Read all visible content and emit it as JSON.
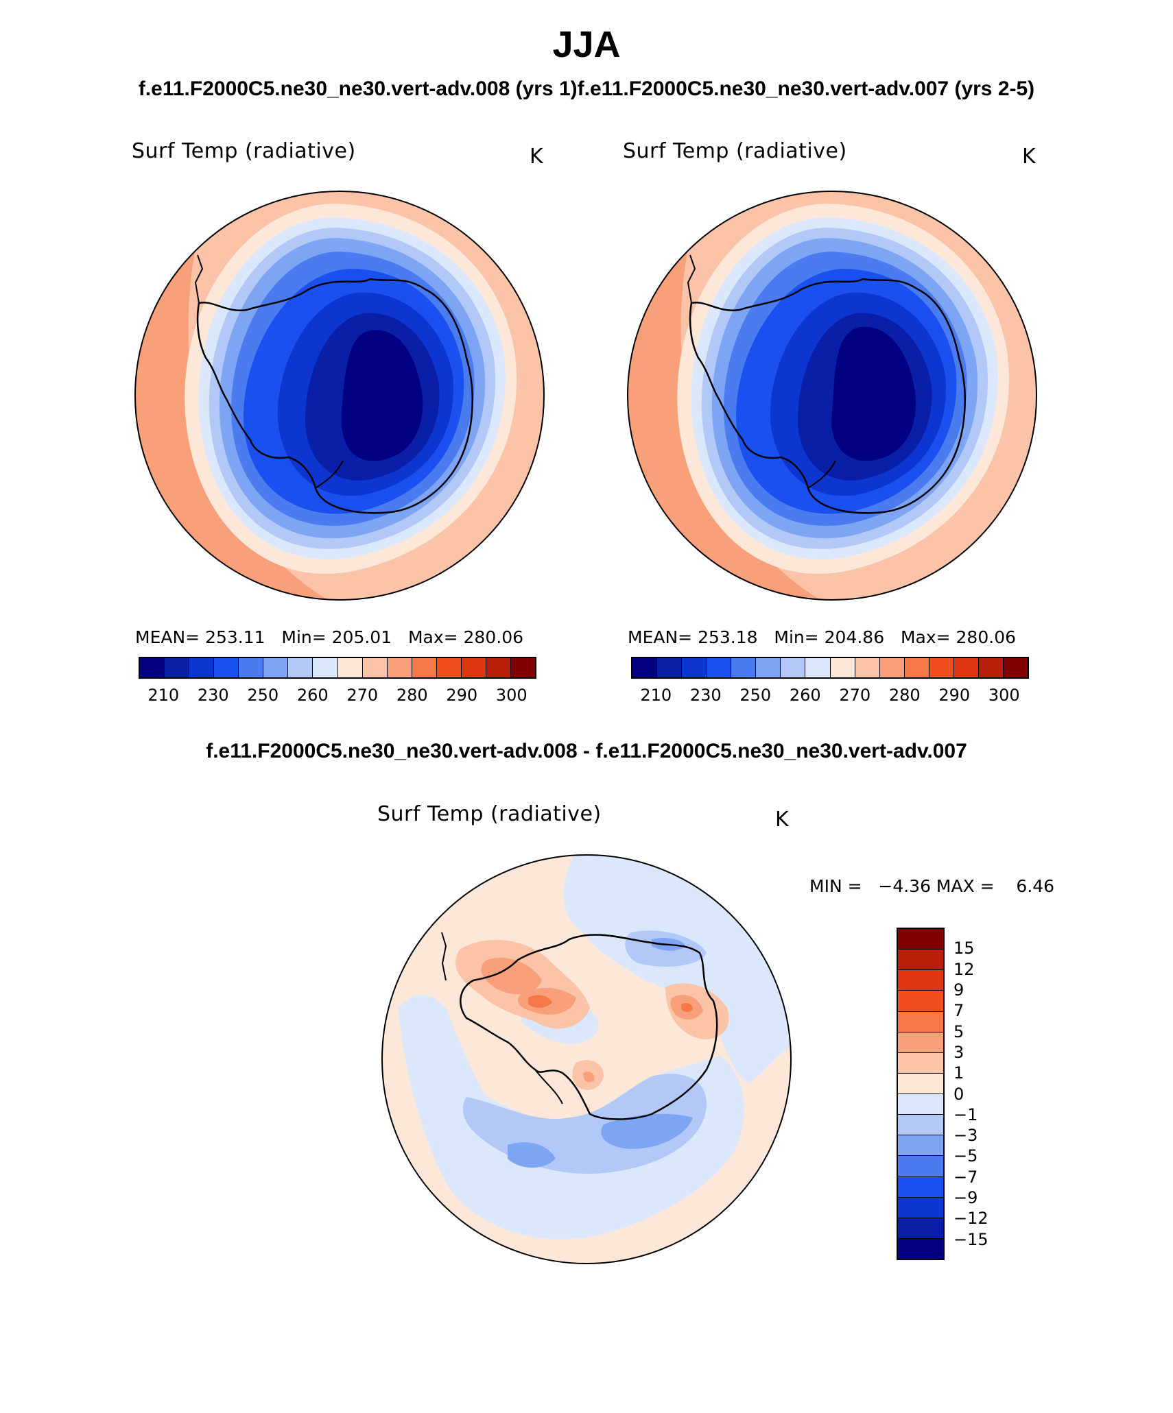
{
  "header": {
    "season": "JJA",
    "runs_line": "f.e11.F2000C5.ne30_ne30.vert-adv.008 (yrs 1)f.e11.F2000C5.ne30_ne30.vert-adv.007 (yrs 2-5)"
  },
  "panels": [
    {
      "variable": "Surf Temp (radiative)",
      "units": "K",
      "stats": "MEAN= 253.11   Min= 205.01   Max= 280.06"
    },
    {
      "variable": "Surf Temp (radiative)",
      "units": "K",
      "stats": "MEAN= 253.18   Min= 204.86   Max= 280.06"
    }
  ],
  "colorbar_abs": {
    "colors": [
      "#000080",
      "#0a1fa8",
      "#0d35d0",
      "#1a50f0",
      "#4a7cf0",
      "#7ea4f4",
      "#b2c9f8",
      "#dbe8fb",
      "#fde7d8",
      "#fbc4a8",
      "#f8a07a",
      "#f57846",
      "#f1501e",
      "#e03710",
      "#b81e08",
      "#800000"
    ],
    "ticks": [
      "210",
      "230",
      "250",
      "260",
      "270",
      "280",
      "290",
      "300"
    ]
  },
  "diff": {
    "title": "f.e11.F2000C5.ne30_ne30.vert-adv.008 - f.e11.F2000C5.ne30_ne30.vert-adv.007",
    "variable": "Surf Temp (radiative)",
    "units": "K",
    "minmax": "MIN =   −4.36 MAX =    6.46",
    "colorbar": {
      "colors_top_to_bottom": [
        "#800000",
        "#b81e08",
        "#e03710",
        "#f1501e",
        "#f57846",
        "#f8a07a",
        "#fbc4a8",
        "#fde7d8",
        "#dbe8fb",
        "#b2c9f8",
        "#7ea4f4",
        "#4a7cf0",
        "#1a50f0",
        "#0d35d0",
        "#0a1fa8",
        "#000080"
      ],
      "ticks": [
        "15",
        "12",
        "9",
        "7",
        "5",
        "3",
        "1",
        "0",
        "−1",
        "−3",
        "−5",
        "−7",
        "−9",
        "−12",
        "−15"
      ]
    }
  }
}
